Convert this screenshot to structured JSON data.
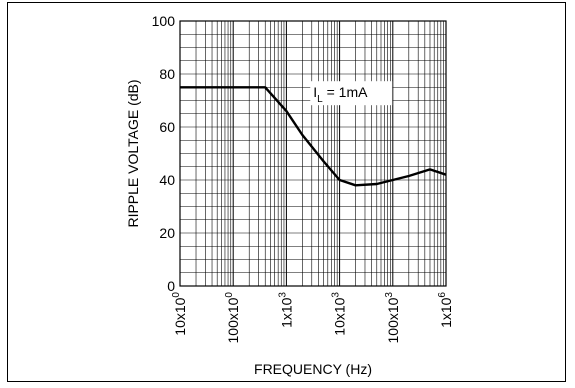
{
  "chart_data": {
    "type": "line",
    "title": "",
    "xlabel": "FREQUENCY (Hz)",
    "ylabel": "RIPPLE VOLTAGE (dB)",
    "x_scale": "log",
    "xlim": [
      10,
      1000000
    ],
    "ylim": [
      0,
      100
    ],
    "grid": true,
    "x_tick_labels": [
      {
        "value": 10,
        "base": "10x10",
        "exp": "0"
      },
      {
        "value": 100,
        "base": "100x10",
        "exp": "0"
      },
      {
        "value": 1000,
        "base": "1x10",
        "exp": "3"
      },
      {
        "value": 10000,
        "base": "10x10",
        "exp": "3"
      },
      {
        "value": 100000,
        "base": "100x10",
        "exp": "3"
      },
      {
        "value": 1000000,
        "base": "1x10",
        "exp": "6"
      }
    ],
    "y_ticks": [
      0,
      20,
      40,
      60,
      80,
      100
    ],
    "annotation": {
      "main": "I",
      "sub": "L",
      "rest": " = 1mA",
      "x": 3200,
      "y": 72
    },
    "series": [
      {
        "x": [
          10,
          60,
          400,
          1000,
          2000,
          5000,
          10000,
          20000,
          50000,
          100000,
          200000,
          500000,
          1000000
        ],
        "y": [
          75,
          75,
          75,
          66,
          57,
          47,
          40,
          38,
          38.5,
          40,
          41.5,
          44,
          42
        ]
      }
    ]
  }
}
